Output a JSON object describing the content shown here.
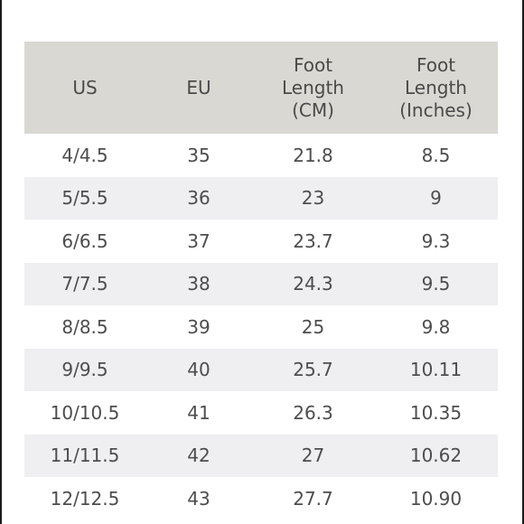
{
  "table": {
    "headers": [
      "US",
      "EU",
      "Foot\nLength\n(CM)",
      "Foot\nLength\n(Inches)"
    ],
    "rows": [
      [
        "4/4.5",
        "35",
        "21.8",
        "8.5"
      ],
      [
        "5/5.5",
        "36",
        "23",
        "9"
      ],
      [
        "6/6.5",
        "37",
        "23.7",
        "9.3"
      ],
      [
        "7/7.5",
        "38",
        "24.3",
        "9.5"
      ],
      [
        "8/8.5",
        "39",
        "25",
        "9.8"
      ],
      [
        "9/9.5",
        "40",
        "25.7",
        "10.11"
      ],
      [
        "10/10.5",
        "41",
        "26.3",
        "10.35"
      ],
      [
        "11/11.5",
        "42",
        "27",
        "10.62"
      ],
      [
        "12/12.5",
        "43",
        "27.7",
        "10.90"
      ]
    ]
  },
  "colors": {
    "header_bg": "#dad8d3",
    "stripe_bg": "#efeff1",
    "text": "#4d4d4d"
  }
}
